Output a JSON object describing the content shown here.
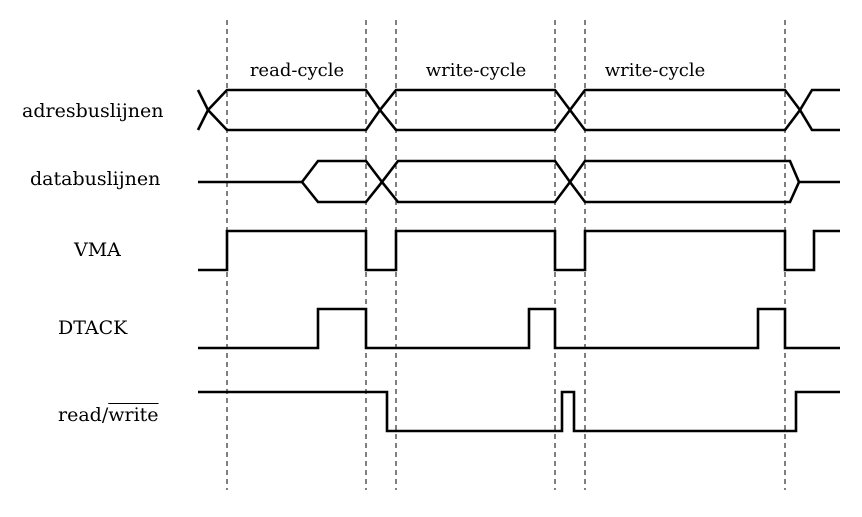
{
  "signals": {
    "address": "adresbuslijnen",
    "data": "databuslijnen",
    "vma": "VMA",
    "dtack": "DTACK",
    "rw_prefix": "read/",
    "rw_bar": "write"
  },
  "cycles": [
    "read-cycle",
    "write-cycle",
    "write-cycle"
  ]
}
